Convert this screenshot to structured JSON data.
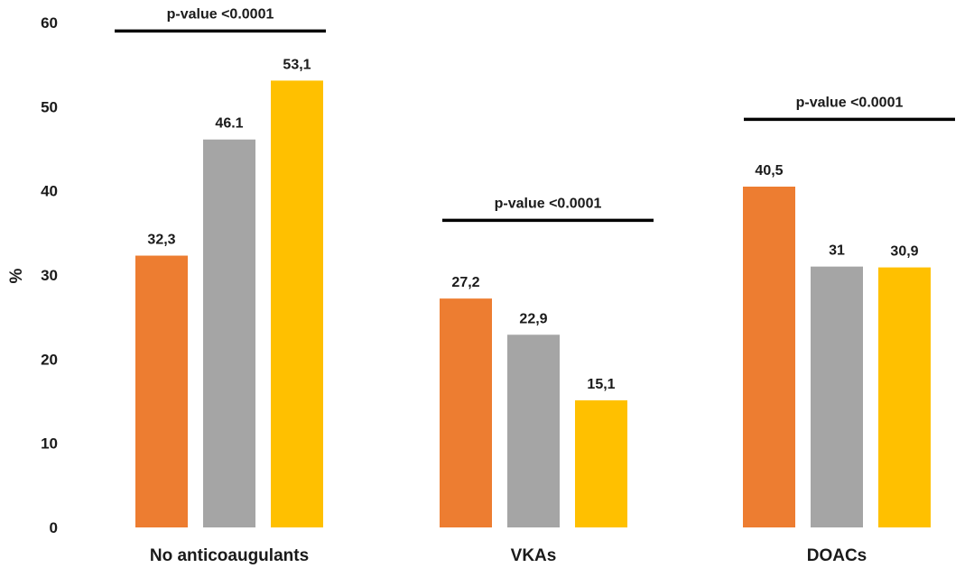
{
  "chart_data": {
    "type": "bar",
    "title": "",
    "xlabel": "",
    "ylabel": "%",
    "ylim": [
      0,
      60
    ],
    "yticks": [
      0,
      10,
      20,
      30,
      40,
      50,
      60
    ],
    "grid": false,
    "legend": "none",
    "categories": [
      "No anticoaugulants",
      "VKAs",
      "DOACs"
    ],
    "series": [
      {
        "color": "#ED7D31",
        "values": [
          32.3,
          27.2,
          40.5
        ],
        "labels": [
          "32,3",
          "27,2",
          "40,5"
        ]
      },
      {
        "color": "#A5A5A5",
        "values": [
          46.1,
          22.9,
          31
        ],
        "labels": [
          "46.1",
          "22,9",
          "31"
        ]
      },
      {
        "color": "#FFC000",
        "values": [
          53.1,
          15.1,
          30.9
        ],
        "labels": [
          "53,1",
          "15,1",
          "30,9"
        ]
      }
    ],
    "annotations": [
      {
        "text": "p-value <0.0001",
        "category": "No anticoaugulants",
        "level": 59
      },
      {
        "text": "p-value <0.0001",
        "category": "VKAs",
        "level": 36.5
      },
      {
        "text": "p-value <0.0001",
        "category": "DOACs",
        "level": 48.5
      }
    ]
  }
}
